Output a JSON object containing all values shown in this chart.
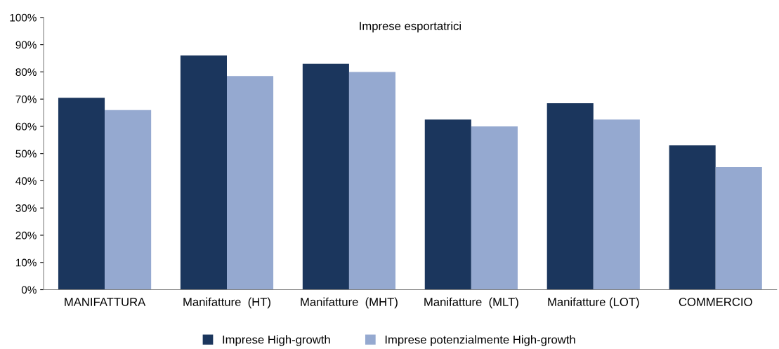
{
  "chart_data": {
    "type": "bar",
    "title": "Imprese esportatrici",
    "categories": [
      "MANIFATTURA",
      "Manifatture  (HT)",
      "Manifatture  (MHT)",
      "Manifatture  (MLT)",
      "Manifatture (LOT)",
      "COMMERCIO"
    ],
    "series": [
      {
        "name": "Imprese High-growth",
        "color": "#1b365d",
        "values": [
          70.5,
          86,
          83,
          62.5,
          68.5,
          53
        ]
      },
      {
        "name": "Imprese potenzialmente High-growth",
        "color": "#95a9d0",
        "values": [
          66,
          78.5,
          80,
          60,
          62.5,
          45
        ]
      }
    ],
    "ylim": [
      0,
      100
    ],
    "yticks": [
      {
        "value": 0,
        "label": "0%"
      },
      {
        "value": 10,
        "label": "10%"
      },
      {
        "value": 20,
        "label": "20%"
      },
      {
        "value": 30,
        "label": "30%"
      },
      {
        "value": 40,
        "label": "40%"
      },
      {
        "value": 50,
        "label": "50%"
      },
      {
        "value": 60,
        "label": "60%"
      },
      {
        "value": 70,
        "label": "70%"
      },
      {
        "value": 80,
        "label": "80%"
      },
      {
        "value": 90,
        "label": "90%"
      },
      {
        "value": 100,
        "label": "100%"
      }
    ],
    "grid": false,
    "legend": "bottom"
  }
}
